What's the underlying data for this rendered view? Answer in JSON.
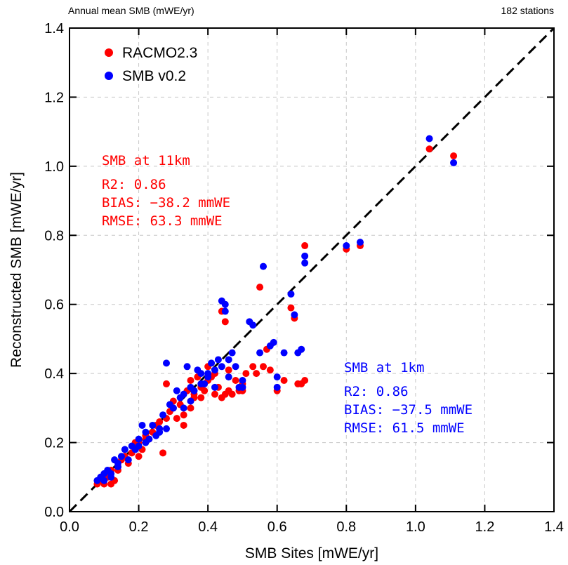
{
  "chart_data": {
    "type": "scatter",
    "title": "Annual mean SMB (mWE/yr)",
    "top_right_label": "182 stations",
    "xlabel": "SMB Sites [mWE/yr]",
    "ylabel": "Reconstructed SMB [mWE/yr]",
    "xlim": [
      0.0,
      1.4
    ],
    "ylim": [
      0.0,
      1.4
    ],
    "xticks": [
      "0.0",
      "0.2",
      "0.4",
      "0.6",
      "0.8",
      "1.0",
      "1.2",
      "1.4"
    ],
    "yticks": [
      "0.0",
      "0.2",
      "0.4",
      "0.6",
      "0.8",
      "1.0",
      "1.2",
      "1.4"
    ],
    "grid": true,
    "one_to_one_line": true,
    "legend_position": "top-left",
    "series": [
      {
        "name": "RACMO2.3",
        "color": "#ff0000",
        "x": [
          0.08,
          0.09,
          0.1,
          0.11,
          0.12,
          0.13,
          0.14,
          0.15,
          0.16,
          0.17,
          0.18,
          0.19,
          0.2,
          0.21,
          0.22,
          0.23,
          0.24,
          0.25,
          0.26,
          0.27,
          0.28,
          0.28,
          0.3,
          0.31,
          0.32,
          0.33,
          0.34,
          0.35,
          0.36,
          0.37,
          0.38,
          0.39,
          0.4,
          0.41,
          0.42,
          0.43,
          0.44,
          0.45,
          0.46,
          0.47,
          0.48,
          0.49,
          0.5,
          0.51,
          0.53,
          0.54,
          0.55,
          0.56,
          0.57,
          0.58,
          0.6,
          0.62,
          0.64,
          0.65,
          0.66,
          0.67,
          0.68,
          0.68,
          0.8,
          0.84,
          1.04,
          1.11,
          0.35,
          0.38,
          0.4,
          0.42,
          0.45,
          0.33,
          0.3,
          0.36,
          0.29,
          0.26,
          0.22,
          0.2,
          0.14,
          0.12,
          0.1,
          0.44,
          0.46,
          0.5
        ],
        "y": [
          0.08,
          0.09,
          0.1,
          0.1,
          0.12,
          0.09,
          0.13,
          0.15,
          0.16,
          0.14,
          0.17,
          0.2,
          0.2,
          0.18,
          0.22,
          0.21,
          0.23,
          0.25,
          0.26,
          0.17,
          0.37,
          0.27,
          0.3,
          0.27,
          0.31,
          0.25,
          0.35,
          0.38,
          0.34,
          0.39,
          0.33,
          0.35,
          0.38,
          0.39,
          0.4,
          0.36,
          0.58,
          0.55,
          0.41,
          0.34,
          0.38,
          0.35,
          0.35,
          0.4,
          0.42,
          0.4,
          0.65,
          0.42,
          0.47,
          0.41,
          0.35,
          0.38,
          0.59,
          0.56,
          0.37,
          0.37,
          0.77,
          0.38,
          0.76,
          0.77,
          1.05,
          1.03,
          0.3,
          0.36,
          0.42,
          0.34,
          0.34,
          0.28,
          0.32,
          0.33,
          0.29,
          0.24,
          0.21,
          0.16,
          0.12,
          0.08,
          0.08,
          0.33,
          0.35,
          0.37
        ]
      },
      {
        "name": "SMB v0.2",
        "color": "#0000ff",
        "x": [
          0.08,
          0.09,
          0.1,
          0.11,
          0.12,
          0.13,
          0.14,
          0.15,
          0.16,
          0.17,
          0.18,
          0.19,
          0.2,
          0.21,
          0.22,
          0.23,
          0.24,
          0.25,
          0.26,
          0.27,
          0.28,
          0.28,
          0.3,
          0.31,
          0.32,
          0.33,
          0.34,
          0.35,
          0.36,
          0.37,
          0.38,
          0.39,
          0.4,
          0.41,
          0.42,
          0.43,
          0.44,
          0.45,
          0.46,
          0.47,
          0.48,
          0.49,
          0.5,
          0.52,
          0.53,
          0.55,
          0.56,
          0.58,
          0.59,
          0.6,
          0.62,
          0.64,
          0.65,
          0.66,
          0.67,
          0.68,
          0.8,
          0.84,
          1.04,
          1.11,
          0.35,
          0.38,
          0.4,
          0.42,
          0.45,
          0.33,
          0.3,
          0.36,
          0.29,
          0.26,
          0.22,
          0.2,
          0.14,
          0.12,
          0.1,
          0.44,
          0.46,
          0.5,
          0.68,
          0.6
        ],
        "y": [
          0.09,
          0.1,
          0.11,
          0.12,
          0.11,
          0.15,
          0.14,
          0.16,
          0.18,
          0.15,
          0.19,
          0.18,
          0.21,
          0.25,
          0.23,
          0.21,
          0.25,
          0.22,
          0.24,
          0.28,
          0.43,
          0.24,
          0.3,
          0.35,
          0.33,
          0.34,
          0.42,
          0.36,
          0.35,
          0.41,
          0.4,
          0.37,
          0.39,
          0.43,
          0.41,
          0.44,
          0.61,
          0.6,
          0.44,
          0.46,
          0.42,
          0.36,
          0.36,
          0.55,
          0.54,
          0.46,
          0.71,
          0.48,
          0.49,
          0.36,
          0.46,
          0.63,
          0.57,
          0.46,
          0.47,
          0.72,
          0.77,
          0.78,
          1.08,
          1.01,
          0.32,
          0.37,
          0.4,
          0.36,
          0.58,
          0.3,
          0.3,
          0.35,
          0.31,
          0.23,
          0.2,
          0.19,
          0.13,
          0.1,
          0.09,
          0.42,
          0.39,
          0.38,
          0.74,
          0.39
        ]
      }
    ],
    "annotations": [
      {
        "color": "#ff0000",
        "position": "upper-left",
        "lines": [
          "SMB at 11km",
          "R2: 0.86",
          "BIAS: −38.2 mmWE",
          "RMSE: 63.3 mmWE"
        ]
      },
      {
        "color": "#0000ff",
        "position": "lower-right",
        "lines": [
          "SMB at 1km",
          "R2: 0.86",
          "BIAS: −37.5 mmWE",
          "RMSE: 61.5 mmWE"
        ]
      }
    ]
  }
}
